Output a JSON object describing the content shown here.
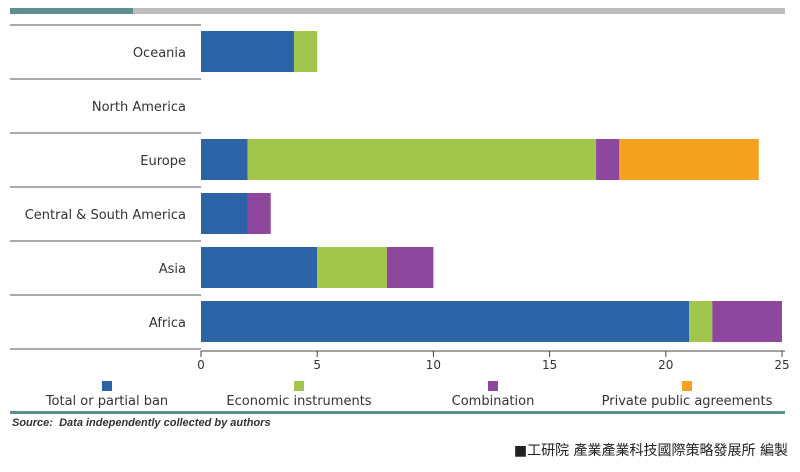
{
  "chart_data": {
    "type": "bar",
    "orientation": "horizontal",
    "stacked": true,
    "categories": [
      "Oceania",
      "North America",
      "Europe",
      "Central & South America",
      "Asia",
      "Africa"
    ],
    "series": [
      {
        "name": "Total or partial ban",
        "color": "#2b63a6",
        "values": [
          4,
          0,
          2,
          2,
          5,
          21
        ]
      },
      {
        "name": "Economic instruments",
        "color": "#a2c64c",
        "values": [
          1,
          0,
          15,
          0,
          3,
          1
        ]
      },
      {
        "name": "Combination",
        "color": "#8d479d",
        "values": [
          0,
          0,
          1,
          1,
          2,
          3
        ]
      },
      {
        "name": "Private public agreements",
        "color": "#f5a220",
        "values": [
          0,
          0,
          6,
          0,
          0,
          0
        ]
      }
    ],
    "xticks": [
      "0",
      "5",
      "10",
      "15",
      "20",
      "25"
    ],
    "xlim": [
      0,
      25
    ],
    "grid": false,
    "legend_position": "bottom"
  },
  "source": {
    "prefix": "Source:",
    "text": "Data independently collected by authors"
  },
  "credit": "■工研院 產業產業科技國際策略發展所 編製",
  "colors": {
    "top_bar_accent": "#5e8f8c",
    "top_bar_rest": "#bdbdbd",
    "divider": "#5e8f8c"
  }
}
